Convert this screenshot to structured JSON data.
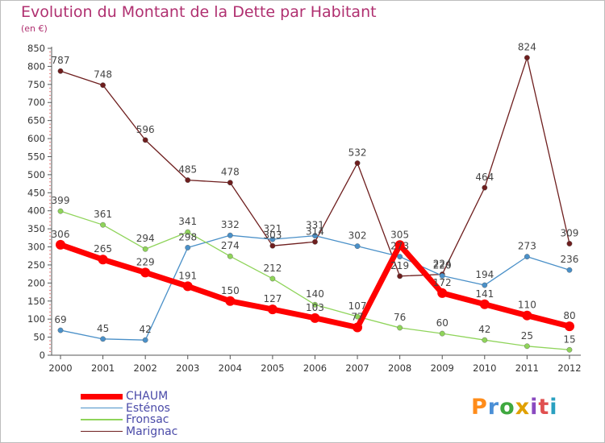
{
  "title": "Evolution du Montant de la Dette par Habitant",
  "subtitle": "(en €)",
  "logo_text": "Proxiti",
  "chart_data": {
    "type": "line",
    "x": [
      "2000",
      "2001",
      "2002",
      "2003",
      "2004",
      "2005",
      "2006",
      "2007",
      "2008",
      "2009",
      "2010",
      "2011",
      "2012"
    ],
    "ylim": [
      0,
      850
    ],
    "yticks": [
      0,
      50,
      100,
      150,
      200,
      250,
      300,
      350,
      400,
      450,
      500,
      550,
      600,
      650,
      700,
      750,
      800,
      850
    ],
    "grid": false,
    "legend_position": "bottom-left",
    "series": [
      {
        "name": "CHAUM",
        "color": "#ff0000",
        "width": 7,
        "values": [
          306,
          265,
          229,
          191,
          150,
          127,
          103,
          77,
          305,
          172,
          141,
          110,
          80
        ],
        "labels": [
          "306",
          "265",
          "229",
          "191",
          "150",
          "127",
          "103",
          "77",
          "305",
          "172",
          "141",
          "110",
          "80"
        ]
      },
      {
        "name": "Esténos",
        "color": "#4a90c8",
        "width": 1.3,
        "values": [
          69,
          45,
          42,
          298,
          332,
          321,
          331,
          302,
          273,
          220,
          194,
          273,
          236
        ],
        "labels": [
          "69",
          "45",
          "42",
          "298",
          "332",
          "321",
          "331",
          "302",
          "273",
          "220",
          "194",
          "273",
          "236"
        ]
      },
      {
        "name": "Fronsac",
        "color": "#8fd45a",
        "width": 1.3,
        "values": [
          399,
          361,
          294,
          341,
          274,
          212,
          140,
          107,
          76,
          60,
          42,
          25,
          15
        ],
        "labels": [
          "399",
          "361",
          "294",
          "341",
          "274",
          "212",
          "140",
          "107",
          "76",
          "60",
          "42",
          "25",
          "15"
        ]
      },
      {
        "name": "Marignac",
        "color": "#6e1e1e",
        "width": 1.3,
        "values": [
          787,
          748,
          596,
          485,
          478,
          303,
          314,
          532,
          219,
          224,
          464,
          824,
          309
        ],
        "labels": [
          "787",
          "748",
          "596",
          "485",
          "478",
          "303",
          "314",
          "532",
          "219",
          "224",
          "464",
          "824",
          "309"
        ]
      }
    ]
  }
}
